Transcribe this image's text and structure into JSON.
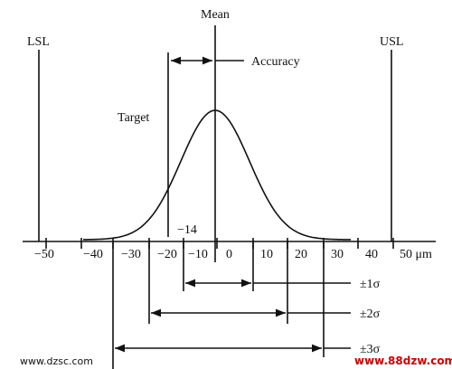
{
  "labels": {
    "mean": "Mean",
    "lsl": "LSL",
    "usl": "USL",
    "accuracy": "Accuracy",
    "target": "Target",
    "offset": "−14"
  },
  "axis": {
    "ticks": [
      "−50",
      "−40",
      "−30",
      "−20",
      "−10",
      "0",
      "10",
      "20",
      "30",
      "40",
      "50 μm"
    ]
  },
  "spreads": [
    "±1σ",
    "±2σ",
    "±3σ"
  ],
  "watermarks": [
    "www.dzsc.com",
    "www.88dzw.com"
  ]
}
